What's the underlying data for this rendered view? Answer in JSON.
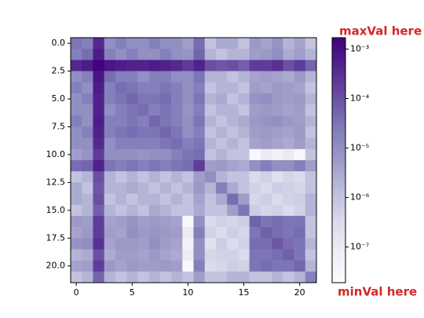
{
  "chart_data": {
    "type": "heatmap",
    "xlim": [
      -0.5,
      21.5
    ],
    "ylim": [
      21.5,
      -0.5
    ],
    "xticks": [
      0,
      5,
      10,
      15,
      20
    ],
    "yticks": [
      {
        "value": 0,
        "label": "0.0"
      },
      {
        "value": 2.5,
        "label": "2.5"
      },
      {
        "value": 5,
        "label": "5.0"
      },
      {
        "value": 7.5,
        "label": "7.5"
      },
      {
        "value": 10,
        "label": "10.0"
      },
      {
        "value": 12.5,
        "label": "12.5"
      },
      {
        "value": 15,
        "label": "15.0"
      },
      {
        "value": 17.5,
        "label": "17.5"
      },
      {
        "value": 20,
        "label": "20.0"
      }
    ],
    "colorbar": {
      "log": true,
      "lim": [
        1.9e-08,
        0.0017
      ],
      "ticks": [
        {
          "value": 0.001,
          "label": "10⁻³"
        },
        {
          "value": 0.0001,
          "label": "10⁻⁴"
        },
        {
          "value": 1e-05,
          "label": "10⁻⁵"
        },
        {
          "value": 1e-06,
          "label": "10⁻⁶"
        },
        {
          "value": 1e-07,
          "label": "10⁻⁷"
        }
      ],
      "colormap": [
        "#fcfbfd",
        "#efedf5",
        "#dadaeb",
        "#bcbddc",
        "#9e9ac8",
        "#807dba",
        "#6a51a3",
        "#54278f",
        "#3f007d"
      ]
    },
    "annotations": [
      "maxVal here",
      "minVal here"
    ],
    "values": [
      [
        3e-05,
        2e-05,
        0.0004,
        1e-05,
        2e-05,
        1e-05,
        1e-05,
        2e-05,
        1e-05,
        1e-05,
        5e-06,
        4e-05,
        1e-06,
        3e-06,
        3e-06,
        1e-06,
        6e-06,
        4e-06,
        8e-06,
        2e-06,
        4e-06,
        1e-06
      ],
      [
        2e-05,
        4e-05,
        0.0006,
        2e-05,
        1e-05,
        2e-05,
        1e-05,
        1e-05,
        2e-05,
        1e-05,
        8e-06,
        5e-05,
        2e-06,
        1e-06,
        2e-06,
        2e-06,
        5e-06,
        6e-06,
        1e-05,
        3e-06,
        5e-06,
        2e-06
      ],
      [
        0.0004,
        0.0006,
        0.0015,
        0.0008,
        0.0006,
        0.0005,
        0.0005,
        0.0006,
        0.0005,
        0.0004,
        0.0002,
        0.0005,
        0.0001,
        8e-05,
        0.0001,
        6e-05,
        0.0002,
        0.0002,
        0.0003,
        0.0001,
        0.0002,
        5e-05
      ],
      [
        1e-05,
        2e-05,
        0.0008,
        4e-05,
        2e-05,
        2e-05,
        1e-05,
        2e-05,
        2e-05,
        1e-05,
        1e-05,
        3e-05,
        2e-06,
        2e-06,
        1e-06,
        2e-06,
        4e-06,
        5e-06,
        4e-06,
        3e-06,
        6e-06,
        2e-06
      ],
      [
        2e-05,
        1e-05,
        0.0006,
        2e-05,
        4e-05,
        3e-05,
        2e-05,
        2e-05,
        3e-05,
        2e-05,
        1e-05,
        2e-05,
        1e-06,
        2e-06,
        2e-06,
        1e-06,
        5e-06,
        4e-06,
        6e-06,
        5e-06,
        4e-06,
        1e-06
      ],
      [
        1e-05,
        2e-05,
        0.0005,
        2e-05,
        3e-05,
        5e-05,
        3e-05,
        3e-05,
        4e-05,
        2e-05,
        1e-05,
        3e-05,
        2e-06,
        3e-06,
        1e-06,
        2e-06,
        8e-06,
        1e-05,
        6e-06,
        5e-06,
        6e-06,
        2e-06
      ],
      [
        1e-05,
        1e-05,
        0.0005,
        1e-05,
        2e-05,
        3e-05,
        4e-05,
        2e-05,
        3e-05,
        2e-05,
        8e-06,
        2e-05,
        1e-06,
        2e-06,
        2e-06,
        1e-06,
        5e-06,
        6e-06,
        5e-06,
        4e-06,
        5e-06,
        1e-06
      ],
      [
        2e-05,
        1e-05,
        0.0006,
        2e-05,
        2e-05,
        3e-05,
        2e-05,
        5e-05,
        3e-05,
        2e-05,
        1e-05,
        3e-05,
        2e-06,
        1e-06,
        2e-06,
        3e-06,
        6e-06,
        8e-06,
        1e-05,
        6e-06,
        5e-06,
        2e-06
      ],
      [
        1e-05,
        2e-05,
        0.0005,
        2e-05,
        3e-05,
        4e-05,
        3e-05,
        3e-05,
        5e-05,
        3e-05,
        1e-05,
        2e-05,
        1e-06,
        2e-06,
        1e-06,
        2e-06,
        5e-06,
        6e-06,
        5e-06,
        4e-06,
        6e-06,
        1e-06
      ],
      [
        1e-05,
        1e-05,
        0.0004,
        1e-05,
        2e-05,
        2e-05,
        2e-05,
        2e-05,
        3e-05,
        4e-05,
        2e-05,
        3e-05,
        2e-06,
        1e-06,
        2e-06,
        1e-06,
        4e-06,
        5e-06,
        4e-06,
        3e-06,
        5e-06,
        2e-06
      ],
      [
        5e-06,
        8e-06,
        0.0002,
        1e-05,
        1e-05,
        1e-05,
        8e-06,
        1e-05,
        1e-05,
        2e-05,
        3e-05,
        4e-05,
        1e-06,
        2e-06,
        1e-06,
        1e-06,
        3e-08,
        1e-07,
        5e-08,
        1e-07,
        3e-08,
        1e-06
      ],
      [
        4e-05,
        5e-05,
        0.0005,
        3e-05,
        2e-05,
        3e-05,
        2e-05,
        3e-05,
        2e-05,
        3e-05,
        4e-05,
        0.0002,
        5e-06,
        6e-06,
        4e-06,
        3e-06,
        1e-05,
        2e-05,
        1e-05,
        1e-05,
        2e-05,
        5e-06
      ],
      [
        1e-06,
        2e-06,
        0.0001,
        2e-06,
        1e-06,
        2e-06,
        1e-06,
        2e-06,
        1e-06,
        2e-06,
        1e-06,
        5e-06,
        1e-05,
        2e-06,
        1e-06,
        1e-06,
        3e-07,
        5e-07,
        2e-07,
        4e-07,
        3e-07,
        1e-06
      ],
      [
        3e-06,
        1e-06,
        8e-05,
        2e-06,
        2e-06,
        3e-06,
        2e-06,
        1e-06,
        2e-06,
        1e-06,
        2e-06,
        6e-06,
        2e-06,
        2e-05,
        3e-06,
        1e-06,
        5e-07,
        3e-07,
        6e-07,
        5e-07,
        4e-07,
        1e-06
      ],
      [
        3e-06,
        2e-06,
        0.0001,
        1e-06,
        2e-06,
        1e-06,
        2e-06,
        2e-06,
        1e-06,
        2e-06,
        1e-06,
        4e-06,
        1e-06,
        3e-06,
        4e-05,
        5e-06,
        4e-07,
        6e-07,
        3e-07,
        5e-07,
        6e-07,
        2e-06
      ],
      [
        1e-06,
        2e-06,
        6e-05,
        2e-06,
        1e-06,
        2e-06,
        1e-06,
        3e-06,
        2e-06,
        1e-06,
        1e-06,
        3e-06,
        1e-06,
        1e-06,
        5e-06,
        3e-05,
        6e-07,
        4e-07,
        5e-07,
        3e-07,
        5e-07,
        2e-06
      ],
      [
        6e-06,
        5e-06,
        0.0002,
        4e-06,
        5e-06,
        8e-06,
        5e-06,
        6e-06,
        5e-06,
        4e-06,
        3e-08,
        1e-05,
        3e-07,
        5e-07,
        4e-07,
        6e-07,
        6e-05,
        3e-05,
        4e-05,
        3e-05,
        3e-05,
        1e-06
      ],
      [
        4e-06,
        6e-06,
        0.0002,
        5e-06,
        4e-06,
        1e-05,
        6e-06,
        8e-06,
        6e-06,
        5e-06,
        1e-07,
        2e-05,
        5e-07,
        3e-07,
        6e-07,
        4e-07,
        3e-05,
        6e-05,
        4e-05,
        3e-05,
        4e-05,
        1e-06
      ],
      [
        8e-06,
        1e-05,
        0.0003,
        4e-06,
        6e-06,
        6e-06,
        5e-06,
        1e-05,
        5e-06,
        4e-06,
        5e-08,
        1e-05,
        2e-07,
        6e-07,
        3e-07,
        5e-07,
        4e-05,
        4e-05,
        8e-05,
        4e-05,
        3e-05,
        2e-06
      ],
      [
        2e-06,
        3e-06,
        0.0001,
        3e-06,
        5e-06,
        5e-06,
        4e-06,
        6e-06,
        4e-06,
        3e-06,
        1e-07,
        1e-05,
        4e-07,
        5e-07,
        5e-07,
        3e-07,
        3e-05,
        3e-05,
        4e-05,
        6e-05,
        3e-05,
        1e-06
      ],
      [
        4e-06,
        5e-06,
        0.0002,
        6e-06,
        4e-06,
        6e-06,
        5e-06,
        5e-06,
        6e-06,
        5e-06,
        3e-08,
        2e-05,
        3e-07,
        4e-07,
        6e-07,
        5e-07,
        3e-05,
        4e-05,
        3e-05,
        3e-05,
        5e-05,
        2e-06
      ],
      [
        1e-06,
        2e-06,
        5e-05,
        2e-06,
        1e-06,
        2e-06,
        1e-06,
        2e-06,
        1e-06,
        2e-06,
        1e-06,
        5e-06,
        1e-06,
        1e-06,
        2e-06,
        2e-06,
        1e-06,
        1e-06,
        2e-06,
        1e-06,
        2e-06,
        2e-05
      ]
    ]
  }
}
